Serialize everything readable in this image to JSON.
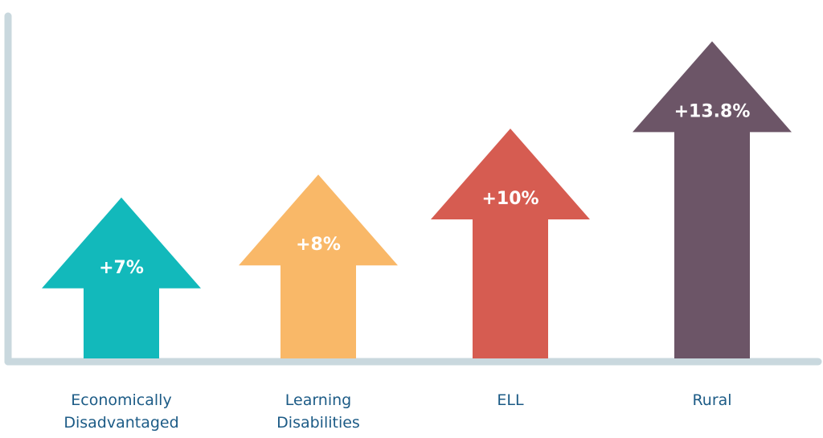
{
  "chart_data": {
    "type": "arrow-bar",
    "categories": [
      "Economically Disadvantaged",
      "Learning Disabilities",
      "ELL",
      "Rural"
    ],
    "values": [
      7,
      8,
      10,
      13.8
    ],
    "value_labels": [
      "+7%",
      "+8%",
      "+10%",
      "+13.8%"
    ],
    "colors": [
      "#12b9bb",
      "#f9b868",
      "#d65c51",
      "#6c5567"
    ],
    "ylim": [
      0,
      15
    ]
  }
}
